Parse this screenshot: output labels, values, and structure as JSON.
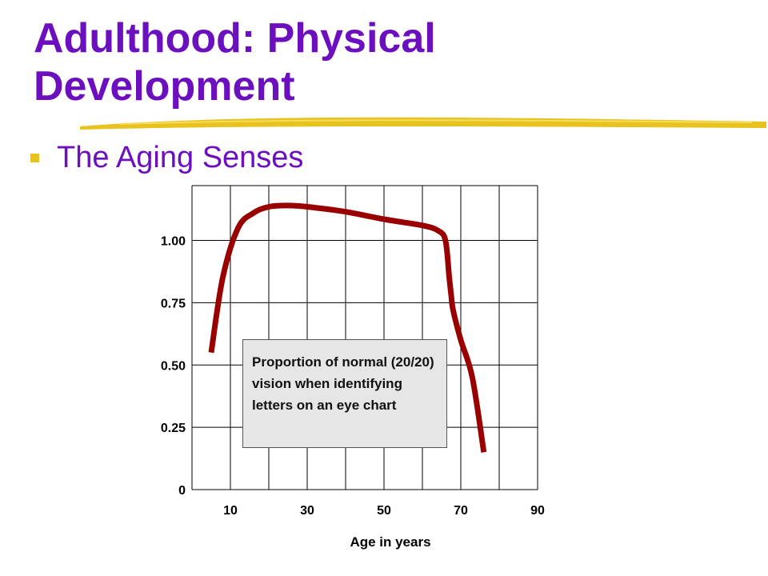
{
  "slide": {
    "title_line1": "Adulthood: Physical",
    "title_line2": "Development",
    "bullet": "The Aging Senses",
    "accent_color": "#6b0fbf",
    "highlight_color": "#e8c21e"
  },
  "chart_data": {
    "type": "line",
    "title": "",
    "xlabel": "Age in years",
    "ylabel": "",
    "x_ticks": [
      10,
      30,
      50,
      70,
      90
    ],
    "y_ticks": [
      {
        "value": 0,
        "label": "0"
      },
      {
        "value": 0.25,
        "label": "0.25"
      },
      {
        "value": 0.5,
        "label": "0.50"
      },
      {
        "value": 0.75,
        "label": "0.75"
      },
      {
        "value": 1.0,
        "label": "1.00"
      }
    ],
    "xlim": [
      0,
      90
    ],
    "ylim": [
      0,
      1.22
    ],
    "grid": true,
    "series": [
      {
        "color": "#990000",
        "x": [
          5,
          8,
          12,
          16,
          20,
          25,
          30,
          40,
          50,
          60,
          64,
          66,
          67,
          67.5,
          68,
          70,
          73,
          76
        ],
        "y": [
          0.55,
          0.85,
          1.05,
          1.11,
          1.135,
          1.14,
          1.135,
          1.115,
          1.085,
          1.06,
          1.04,
          1.0,
          0.85,
          0.78,
          0.72,
          0.6,
          0.45,
          0.15
        ]
      }
    ],
    "annotation": "Proportion of normal (20/20) vision when identifying letters on an eye chart"
  }
}
